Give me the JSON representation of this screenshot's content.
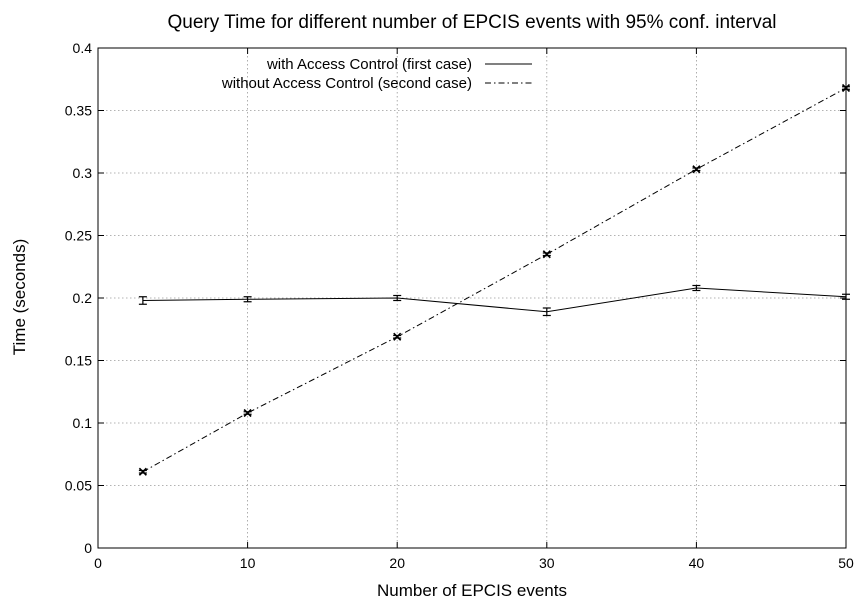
{
  "chart_data": {
    "type": "line",
    "title": "Query Time for different number of EPCIS events with 95% conf. interval",
    "xlabel": "Number of EPCIS events",
    "ylabel": "Time (seconds)",
    "xlim": [
      0,
      50
    ],
    "ylim": [
      0,
      0.4
    ],
    "xticks": [
      0,
      10,
      20,
      30,
      40,
      50
    ],
    "yticks": [
      0,
      0.05,
      0.1,
      0.15,
      0.2,
      0.25,
      0.3,
      0.35,
      0.4
    ],
    "xtick_labels": [
      "0",
      "10",
      "20",
      "30",
      "40",
      "50"
    ],
    "ytick_labels": [
      "0",
      "0.05",
      "0.1",
      "0.15",
      "0.2",
      "0.25",
      "0.3",
      "0.35",
      "0.4"
    ],
    "grid": true,
    "legend_position": "top-center",
    "series": [
      {
        "name": "with Access Control (first case)",
        "style": "solid",
        "color": "#000000",
        "x": [
          3,
          10,
          20,
          30,
          40,
          50
        ],
        "y": [
          0.198,
          0.199,
          0.2,
          0.189,
          0.208,
          0.201
        ],
        "err": [
          0.003,
          0.002,
          0.002,
          0.003,
          0.002,
          0.002
        ]
      },
      {
        "name": "without Access Control (second case)",
        "style": "dashdot",
        "color": "#000000",
        "x": [
          3,
          10,
          20,
          30,
          40,
          50
        ],
        "y": [
          0.061,
          0.108,
          0.169,
          0.235,
          0.303,
          0.368
        ],
        "err": [
          0.001,
          0.001,
          0.001,
          0.001,
          0.001,
          0.001
        ]
      }
    ]
  }
}
